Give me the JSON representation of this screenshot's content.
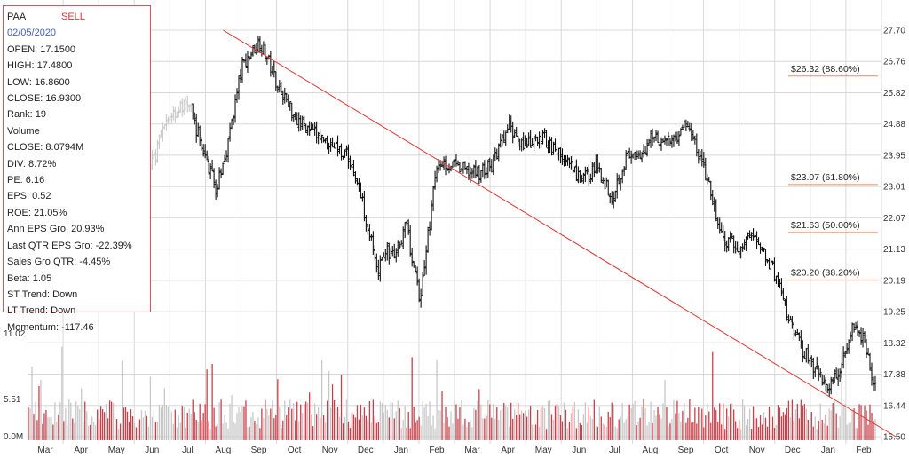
{
  "info": {
    "symbol": "PAA",
    "signal": "SELL",
    "date": "02/05/2020",
    "lines": [
      "OPEN: 17.1500",
      "HIGH: 17.4800",
      "LOW: 16.8600",
      "CLOSE: 16.9300",
      "Rank: 19",
      "Volume",
      "CLOSE: 8.0794M",
      "DIV: 8.72%",
      "PE: 6.16",
      "EPS: 0.52",
      "ROE: 21.05%",
      "Ann EPS Gro: 20.93%",
      "Last QTR EPS Gro: -22.39%",
      "Sales Gro QTR: -4.45%",
      "Beta: 1.05",
      "ST Trend: Down",
      "LT Trend: Down",
      "Momentum: -117.46"
    ]
  },
  "colors": {
    "price_bar": "#111111",
    "price_bar_old": "#c8c8c8",
    "volume_up": "#c8c8c8",
    "volume_down": "#c9404a",
    "trendline": "#e0332f",
    "fib_line": "#f08a55",
    "grid": "#d8d8d8",
    "signal_text": "#e0332f",
    "date_text": "#3f5fbf"
  },
  "chart_data": [
    {
      "type": "candlestick",
      "name": "price",
      "y_axis_side": "right",
      "ylim": [
        15.5,
        27.7
      ],
      "yticks": [
        "27.70",
        "26.76",
        "25.82",
        "24.88",
        "23.95",
        "23.01",
        "22.07",
        "21.13",
        "20.19",
        "19.25",
        "18.32",
        "17.38",
        "16.44",
        "15.50"
      ],
      "x_tick_labels": [
        "Mar",
        "Apr",
        "May",
        "Jun",
        "Jul",
        "Aug",
        "Sep",
        "Oct",
        "Nov",
        "Dec",
        "Jan",
        "Feb",
        "Mar",
        "Apr",
        "May",
        "Jun",
        "Jul",
        "Aug",
        "Sep",
        "Oct",
        "Nov",
        "Dec",
        "Jan",
        "Feb"
      ],
      "grid": true,
      "series_x_month": [
        0,
        0.5,
        1,
        1.5,
        2,
        2.5,
        3,
        3.5,
        4,
        4.5,
        5,
        5.3,
        5.6,
        6,
        6.5,
        7,
        7.5,
        8,
        8.5,
        9,
        9.3,
        9.6,
        9.8,
        10,
        10.3,
        10.6,
        11,
        11.5,
        12,
        12.5,
        13,
        13.5,
        14,
        14.5,
        15,
        15.5,
        16,
        16.4,
        16.8,
        17.2,
        17.5,
        18,
        18.5,
        19,
        19.5,
        20,
        20.3,
        20.6,
        21,
        21.5,
        22,
        22.5,
        22.8,
        23.2,
        23.5,
        23.8
      ],
      "series_close": [
        21.8,
        21.2,
        22.5,
        24.2,
        24.5,
        24.0,
        23.2,
        23.8,
        25.2,
        25.5,
        23.8,
        22.9,
        24.3,
        26.6,
        27.4,
        26.1,
        25.1,
        24.6,
        24.3,
        23.9,
        22.9,
        21.6,
        20.3,
        21.1,
        20.9,
        21.9,
        19.6,
        23.8,
        23.6,
        23.4,
        23.6,
        24.8,
        24.2,
        24.5,
        23.9,
        23.2,
        23.6,
        22.7,
        23.9,
        23.8,
        24.6,
        24.3,
        24.9,
        23.5,
        21.4,
        21.1,
        21.6,
        21.2,
        20.3,
        18.6,
        17.7,
        17.0,
        17.6,
        18.9,
        18.4,
        16.9
      ],
      "trendline": {
        "from": [
          5.0,
          27.7
        ],
        "to": [
          23.9,
          15.5
        ]
      },
      "fib_levels": [
        {
          "price": 26.32,
          "label": "$26.32 (88.60%)"
        },
        {
          "price": 23.07,
          "label": "$23.07 (61.80%)"
        },
        {
          "price": 21.63,
          "label": "$21.63 (50.00%)"
        },
        {
          "price": 20.2,
          "label": "$20.20 (38.20%)"
        }
      ]
    },
    {
      "type": "bar",
      "name": "volume",
      "y_axis_side": "left",
      "ylim": [
        0,
        11.02
      ],
      "yticks": [
        "11.02",
        "5.51",
        "0.0M"
      ],
      "bar_colors": {
        "up": "#c8c8c8",
        "down": "#c9404a"
      }
    }
  ]
}
